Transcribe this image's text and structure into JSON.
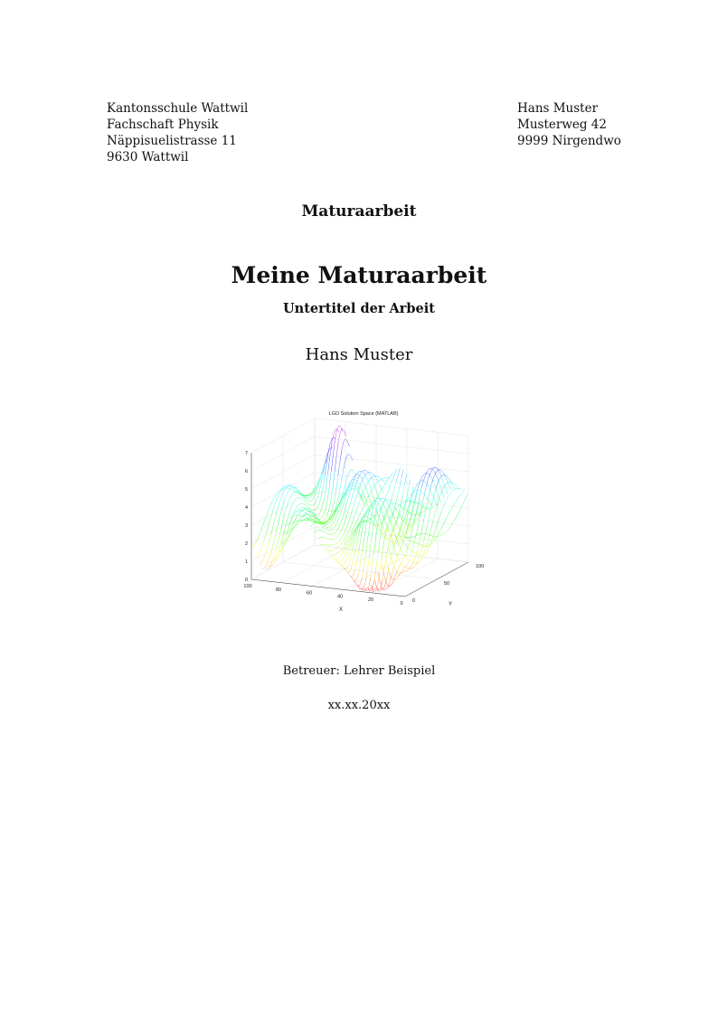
{
  "school": {
    "lines": [
      "Kantonsschule Wattwil",
      "Fachschaft Physik",
      "Näppisuelistrasse 11",
      "9630 Wattwil"
    ]
  },
  "student_address": {
    "lines": [
      "Hans Muster",
      "Musterweg 42",
      "9999 Nirgendwo"
    ]
  },
  "document_kind": "Maturaarbeit",
  "title": "Meine Maturaarbeit",
  "subtitle": "Untertitel der Arbeit",
  "author": "Hans Muster",
  "figure": {
    "type": "3d-mesh-surface",
    "title": "LGO Solution Space (MATLAB)",
    "xlabel": "X",
    "ylabel": "Y",
    "x_ticks": [
      "100",
      "80",
      "60",
      "40",
      "20",
      "0"
    ],
    "y_ticks": [
      "0",
      "50",
      "100"
    ],
    "z_ticks": [
      "0",
      "1",
      "2",
      "3",
      "4",
      "5",
      "6",
      "7"
    ],
    "xlim": [
      0,
      100
    ],
    "ylim": [
      0,
      100
    ],
    "zlim": [
      0,
      7
    ],
    "colormap": "hsv"
  },
  "supervisor": "Betreuer: Lehrer Beispiel",
  "date": "xx.xx.20xx"
}
